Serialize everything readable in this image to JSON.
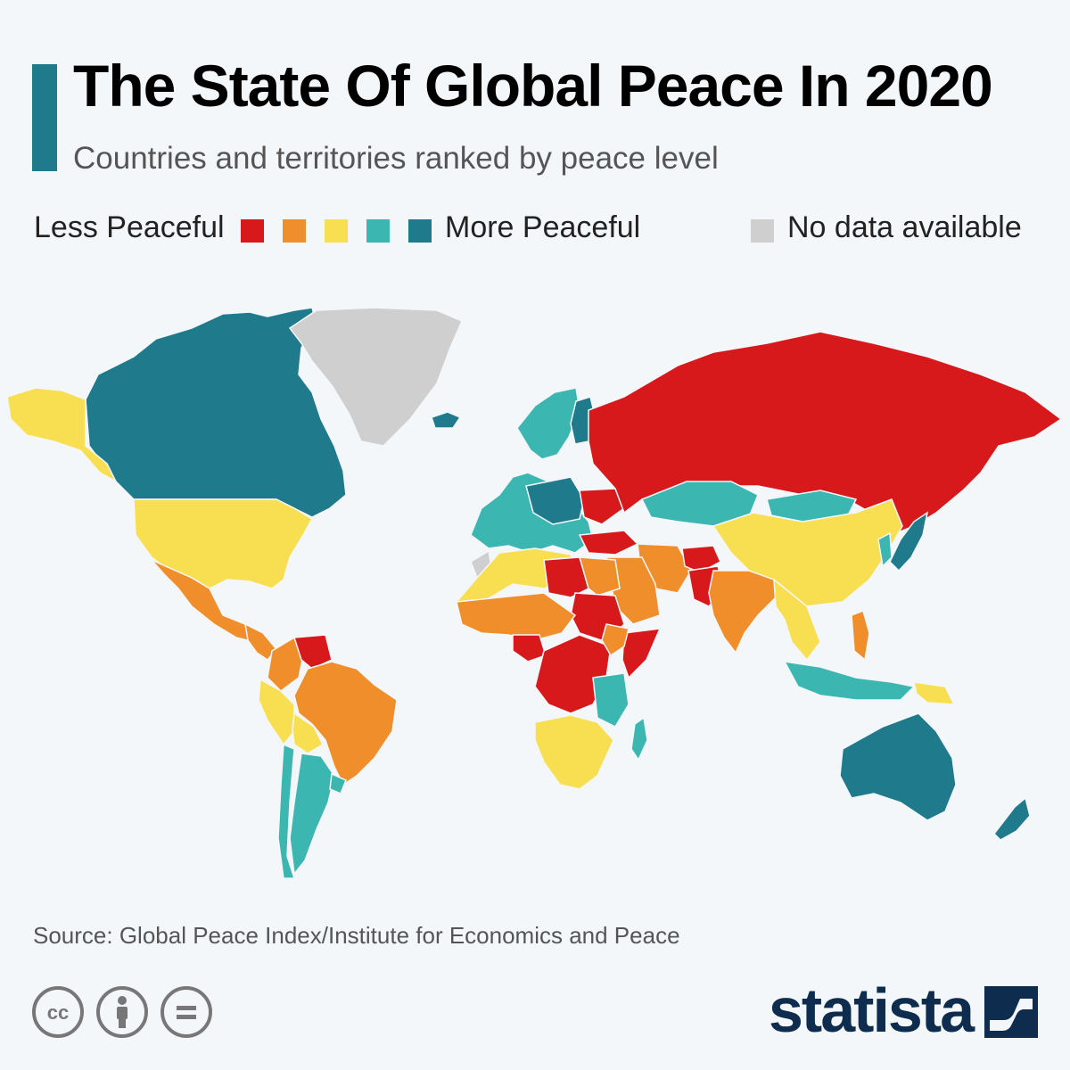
{
  "header": {
    "title": "The State Of Global Peace In 2020",
    "subtitle": "Countries and territories ranked by peace level"
  },
  "legend": {
    "less_label": "Less Peaceful",
    "more_label": "More Peaceful",
    "no_data_label": "No data available",
    "scale_colors": [
      "#d7191c",
      "#ef8e2a",
      "#f8df52",
      "#3bb6b0",
      "#1f7a8c"
    ],
    "no_data_color": "#cfcfcf"
  },
  "map": {
    "regions": [
      {
        "name": "Canada",
        "level": 5
      },
      {
        "name": "Alaska",
        "level": 3
      },
      {
        "name": "United States",
        "level": 3
      },
      {
        "name": "Greenland",
        "level": 0
      },
      {
        "name": "Mexico",
        "level": 2
      },
      {
        "name": "Central America",
        "level": 2
      },
      {
        "name": "Colombia",
        "level": 2
      },
      {
        "name": "Venezuela",
        "level": 1
      },
      {
        "name": "Brazil",
        "level": 2
      },
      {
        "name": "Peru",
        "level": 3
      },
      {
        "name": "Bolivia",
        "level": 3
      },
      {
        "name": "Argentina",
        "level": 4
      },
      {
        "name": "Chile",
        "level": 4
      },
      {
        "name": "Uruguay",
        "level": 4
      },
      {
        "name": "Iceland",
        "level": 5
      },
      {
        "name": "Scandinavia",
        "level": 4
      },
      {
        "name": "Finland",
        "level": 5
      },
      {
        "name": "Western Europe",
        "level": 4
      },
      {
        "name": "Central Europe",
        "level": 5
      },
      {
        "name": "Ukraine",
        "level": 1
      },
      {
        "name": "Russia",
        "level": 1
      },
      {
        "name": "Kazakhstan",
        "level": 4
      },
      {
        "name": "Mongolia",
        "level": 4
      },
      {
        "name": "China",
        "level": 3
      },
      {
        "name": "Japan",
        "level": 5
      },
      {
        "name": "Korea",
        "level": 4
      },
      {
        "name": "Turkey",
        "level": 1
      },
      {
        "name": "Iran",
        "level": 2
      },
      {
        "name": "Saudi Arabia",
        "level": 2
      },
      {
        "name": "Afghanistan",
        "level": 1
      },
      {
        "name": "Pakistan",
        "level": 1
      },
      {
        "name": "India",
        "level": 2
      },
      {
        "name": "Southeast Asia",
        "level": 3
      },
      {
        "name": "Philippines",
        "level": 2
      },
      {
        "name": "Indonesia",
        "level": 4
      },
      {
        "name": "Papua New Guinea",
        "level": 3
      },
      {
        "name": "Australia",
        "level": 5
      },
      {
        "name": "New Zealand",
        "level": 5
      },
      {
        "name": "Western Sahara",
        "level": 0
      },
      {
        "name": "North Africa",
        "level": 3
      },
      {
        "name": "Libya",
        "level": 1
      },
      {
        "name": "Egypt",
        "level": 2
      },
      {
        "name": "Sudan",
        "level": 1
      },
      {
        "name": "Sahel",
        "level": 2
      },
      {
        "name": "Nigeria",
        "level": 1
      },
      {
        "name": "Central Africa",
        "level": 1
      },
      {
        "name": "Somalia",
        "level": 1
      },
      {
        "name": "Ethiopia",
        "level": 2
      },
      {
        "name": "East Africa",
        "level": 4
      },
      {
        "name": "Southern Africa",
        "level": 3
      },
      {
        "name": "Madagascar",
        "level": 4
      }
    ]
  },
  "footer": {
    "source": "Source: Global Peace Index/Institute for Economics and Peace",
    "brand": "statista",
    "license_icons": [
      "cc-icon",
      "attribution-icon",
      "no-derivatives-icon"
    ]
  }
}
